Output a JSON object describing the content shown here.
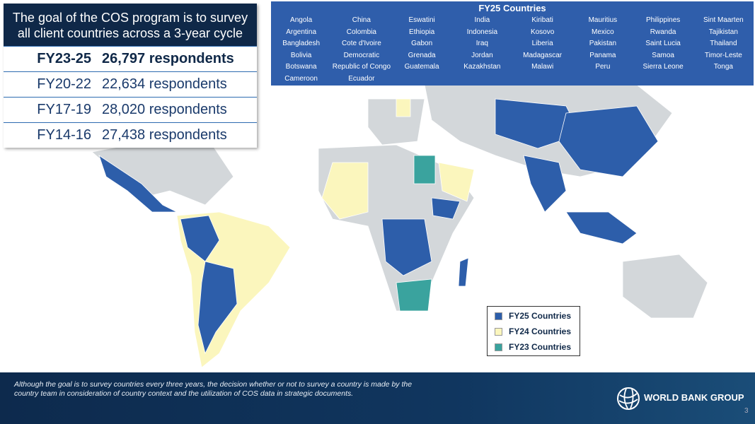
{
  "goal_box": {
    "title": "The goal of the COS program is to survey all client countries across a 3-year cycle",
    "periods": [
      {
        "label": "FY23-25",
        "respondents": "26,797 respondents"
      },
      {
        "label": "FY20-22",
        "respondents": "22,634 respondents"
      },
      {
        "label": "FY17-19",
        "respondents": "28,020 respondents"
      },
      {
        "label": "FY14-16",
        "respondents": "27,438 respondents"
      }
    ]
  },
  "countries_box": {
    "title": "FY25 Countries",
    "columns": [
      [
        "Angola",
        "Argentina",
        "Bangladesh",
        "Bolivia",
        "Botswana",
        "Cameroon"
      ],
      [
        "China",
        "Colombia",
        "Cote d'Ivoire",
        "Democratic",
        "Republic of Congo",
        "Ecuador"
      ],
      [
        "Eswatini",
        "Ethiopia",
        "Gabon",
        "Grenada",
        "Guatemala"
      ],
      [
        "India",
        "Indonesia",
        "Iraq",
        "Jordan",
        "Kazakhstan"
      ],
      [
        "Kiribati",
        "Kosovo",
        "Liberia",
        "Madagascar",
        "Malawi"
      ],
      [
        "Mauritius",
        "Mexico",
        "Pakistan",
        "Panama",
        "Peru"
      ],
      [
        "Philippines",
        "Rwanda",
        "Saint Lucia",
        "Samoa",
        "Sierra Leone"
      ],
      [
        "Sint Maarten",
        "Tajikistan",
        "Thailand",
        "Timor-Leste",
        "Tonga"
      ]
    ]
  },
  "legend": [
    {
      "name": "FY25 Countries",
      "color": "#2d5eaa"
    },
    {
      "name": "FY24 Countries",
      "color": "#fbf6bd"
    },
    {
      "name": "FY23 Countries",
      "color": "#3aa39e"
    }
  ],
  "footer": {
    "note": "Although the goal is to survey countries every three years, the decision whether or not to survey a country is made by the country team in consideration of country context and the utilization of COS data in strategic documents.",
    "logo": "WORLD BANK GROUP",
    "page_number": "3"
  }
}
